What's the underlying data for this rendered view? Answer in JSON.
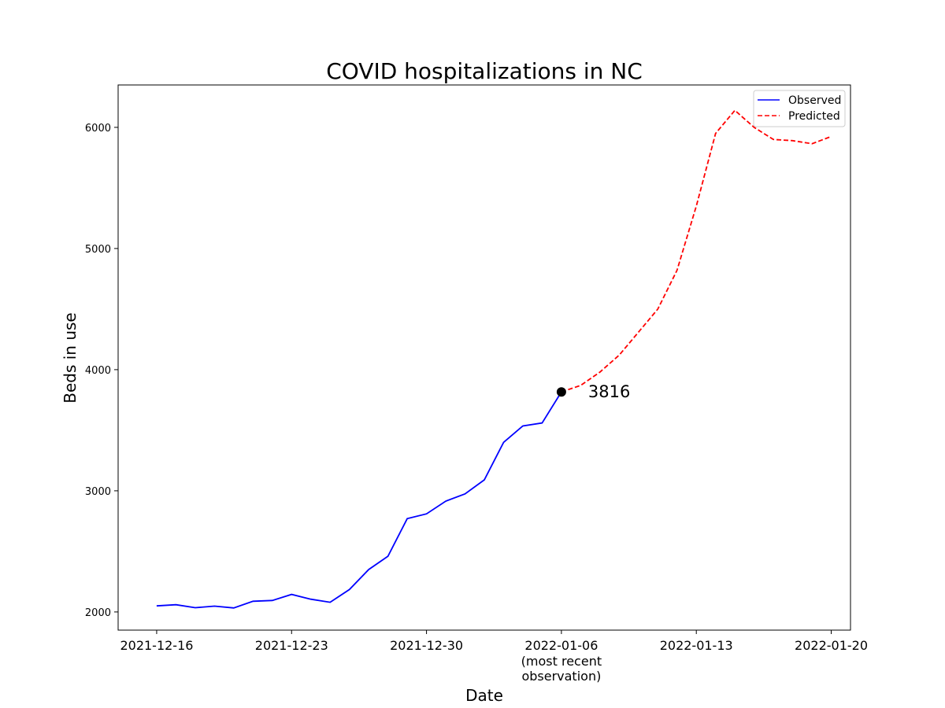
{
  "chart_data": {
    "type": "line",
    "title": "COVID hospitalizations in NC",
    "xlabel": "Date",
    "ylabel": "Beds in use",
    "xlim": [
      "2021-12-14",
      "2022-01-21"
    ],
    "ylim": [
      1850,
      6350
    ],
    "x_ticks": [
      {
        "date": "2021-12-16",
        "label": "2021-12-16",
        "sublabel": ""
      },
      {
        "date": "2021-12-23",
        "label": "2021-12-23",
        "sublabel": ""
      },
      {
        "date": "2021-12-30",
        "label": "2021-12-30",
        "sublabel": ""
      },
      {
        "date": "2022-01-06",
        "label": "2022-01-06",
        "sublabel": "(most recent\nobservation)"
      },
      {
        "date": "2022-01-13",
        "label": "2022-01-13",
        "sublabel": ""
      },
      {
        "date": "2022-01-20",
        "label": "2022-01-20",
        "sublabel": ""
      }
    ],
    "y_ticks": [
      2000,
      3000,
      4000,
      5000,
      6000
    ],
    "grid": false,
    "legend_position": "top-right",
    "series": [
      {
        "name": "Observed",
        "color": "#0000ff",
        "style": "solid",
        "x": [
          "2021-12-16",
          "2021-12-17",
          "2021-12-18",
          "2021-12-19",
          "2021-12-20",
          "2021-12-21",
          "2021-12-22",
          "2021-12-23",
          "2021-12-24",
          "2021-12-25",
          "2021-12-26",
          "2021-12-27",
          "2021-12-28",
          "2021-12-29",
          "2021-12-30",
          "2021-12-31",
          "2022-01-01",
          "2022-01-02",
          "2022-01-03",
          "2022-01-04",
          "2022-01-05",
          "2022-01-06"
        ],
        "values": [
          2050,
          2060,
          2035,
          2048,
          2033,
          2088,
          2095,
          2145,
          2105,
          2080,
          2185,
          2350,
          2460,
          2770,
          2810,
          2915,
          2975,
          3090,
          3400,
          3535,
          3560,
          3816
        ]
      },
      {
        "name": "Predicted",
        "color": "#ff0000",
        "style": "dashed",
        "x": [
          "2022-01-06",
          "2022-01-07",
          "2022-01-08",
          "2022-01-09",
          "2022-01-10",
          "2022-01-11",
          "2022-01-12",
          "2022-01-13",
          "2022-01-14",
          "2022-01-15",
          "2022-01-16",
          "2022-01-17",
          "2022-01-18",
          "2022-01-19",
          "2022-01-20"
        ],
        "values": [
          3816,
          3870,
          3980,
          4120,
          4310,
          4500,
          4820,
          5350,
          5950,
          6140,
          6000,
          5900,
          5890,
          5865,
          5925
        ]
      }
    ],
    "annotations": [
      {
        "x": "2022-01-06",
        "y": 3816,
        "text": "3816",
        "marker_color": "#000000"
      }
    ]
  }
}
